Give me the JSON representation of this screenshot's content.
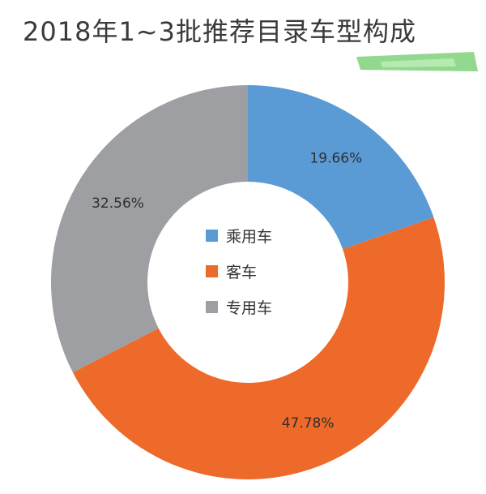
{
  "title": "2018年1~3批推荐目录车型构成",
  "chart_data": {
    "type": "pie",
    "style": "donut",
    "title": "2018年1~3批推荐目录车型构成",
    "categories": [
      "乘用车",
      "客车",
      "专用车"
    ],
    "values": [
      19.66,
      47.78,
      32.56
    ],
    "value_labels": [
      "19.66%",
      "47.78%",
      "32.56%"
    ],
    "colors": [
      "#5b9bd5",
      "#ed6a2a",
      "#9d9fa2"
    ],
    "start_angle_deg": 0,
    "direction": "clockwise",
    "legend": {
      "placement": "center"
    }
  }
}
